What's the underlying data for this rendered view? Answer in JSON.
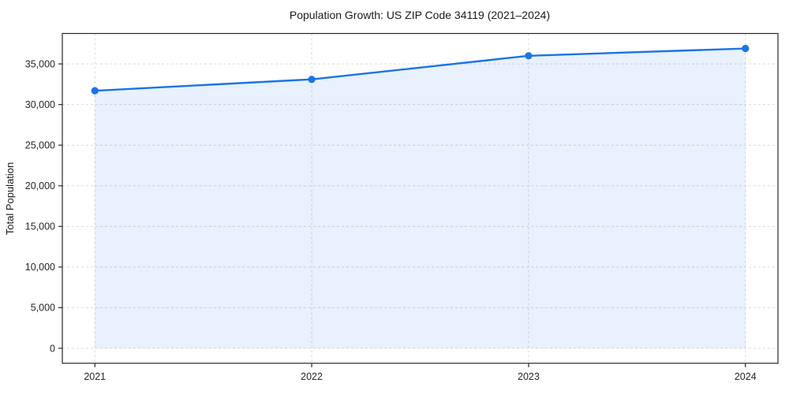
{
  "chart_data": {
    "type": "area",
    "title": "Population Growth: US ZIP Code 34119 (2021–2024)",
    "xlabel": "",
    "ylabel": "Total Population",
    "x": [
      2021,
      2022,
      2023,
      2024
    ],
    "xticklabels": [
      "2021",
      "2022",
      "2023",
      "2024"
    ],
    "series": [
      {
        "name": "Total Population",
        "values": [
          31700,
          33100,
          36000,
          36900
        ]
      }
    ],
    "yticks": [
      0,
      5000,
      10000,
      15000,
      20000,
      25000,
      30000,
      35000
    ],
    "ylim": [
      -1845,
      38745
    ],
    "xlim": [
      2020.85,
      2024.15
    ],
    "grid": true,
    "grid_style": "dashed",
    "legend": false,
    "baseline": 0,
    "colors": {
      "line": "#1A73E8",
      "marker": "#1A73E8",
      "fill": "#1A73E8",
      "fill_opacity": 0.1,
      "grid": "#d9d9d9",
      "frame": "#262626",
      "text": "#262626"
    }
  }
}
